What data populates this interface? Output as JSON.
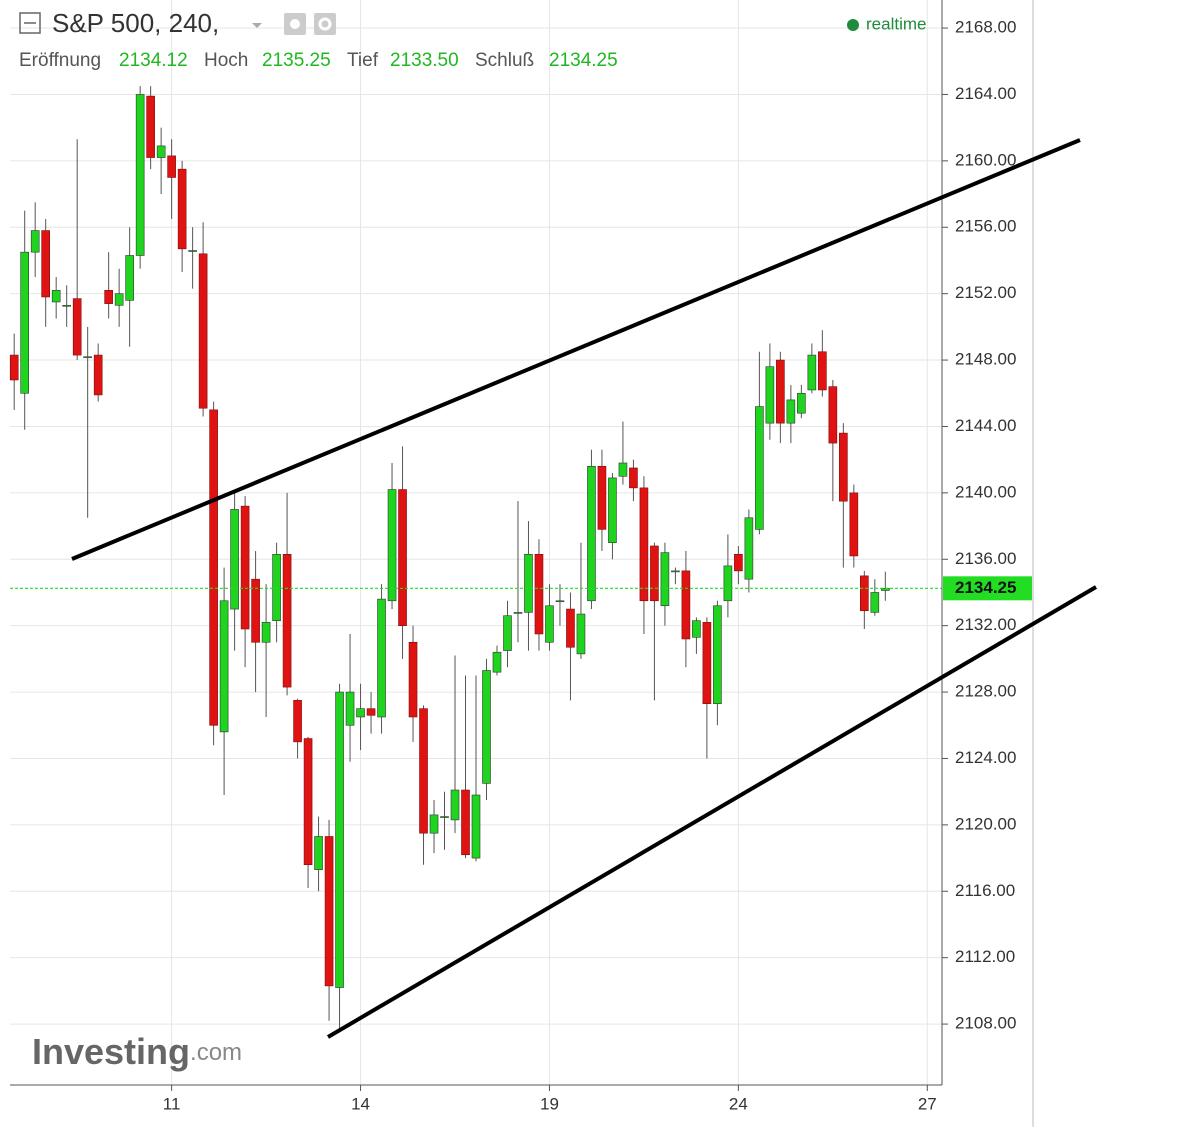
{
  "header": {
    "symbol": "S&P 500, 240,",
    "status": "realtime",
    "ohlc": [
      {
        "label": "Eröffnung",
        "value": "2134.12"
      },
      {
        "label": "Hoch",
        "value": "2135.25"
      },
      {
        "label": "Tief",
        "value": "2133.50"
      },
      {
        "label": "Schluß",
        "value": "2134.25"
      }
    ],
    "watermark": [
      "Investing",
      ".com"
    ]
  },
  "chart_data": {
    "type": "candlestick",
    "up_color": "#1fd41f",
    "down_color": "#e01313",
    "grid": true,
    "x": [
      0,
      1,
      2,
      3,
      4,
      5,
      6,
      7,
      8,
      9,
      10,
      11,
      12,
      13,
      14,
      15,
      16,
      17,
      18,
      19,
      20,
      21,
      22,
      23,
      24,
      25,
      26,
      27,
      28,
      29,
      30,
      31,
      32,
      33,
      34,
      35,
      36,
      37,
      38,
      39,
      40,
      41,
      42,
      43,
      44,
      45,
      46,
      47,
      48,
      49,
      50,
      51,
      52,
      53,
      54,
      55,
      56,
      57,
      58,
      59,
      60,
      61,
      62,
      63,
      64,
      65,
      66,
      67,
      68,
      69,
      70,
      71,
      72,
      73,
      74,
      75,
      76,
      77,
      78,
      79,
      80,
      81,
      82,
      83
    ],
    "open": [
      2148.3,
      2146,
      2154.5,
      2155.8,
      2151.5,
      2151.3,
      2151.7,
      2148.2,
      2148.3,
      2152.2,
      2151.3,
      2151.6,
      2154.3,
      2163.9,
      2160.2,
      2160.3,
      2159.5,
      2154.6,
      2154.4,
      2145,
      2125.6,
      2133,
      2139.2,
      2134.8,
      2131,
      2132.3,
      2136.3,
      2127.5,
      2125.2,
      2117.3,
      2119.3,
      2110.2,
      2126,
      2126.5,
      2127,
      2126.5,
      2133.5,
      2140.2,
      2131,
      2127,
      2119.5,
      2120.5,
      2120.3,
      2122.1,
      2118,
      2122.5,
      2129.2,
      2130.5,
      2132.8,
      2132.8,
      2136.3,
      2131,
      2133.5,
      2133,
      2130.3,
      2133.5,
      2141.6,
      2137,
      2141,
      2141.5,
      2140.3,
      2136.8,
      2133.2,
      2135.3,
      2135.3,
      2131.3,
      2132.2,
      2127.3,
      2133.5,
      2136.3,
      2134.8,
      2137.8,
      2144.2,
      2148,
      2144.2,
      2144.8,
      2146.2,
      2148.5,
      2146.4,
      2143.6,
      2140,
      2135,
      2132.8,
      2134.12
    ],
    "high": [
      2149.6,
      2157,
      2157.5,
      2156.5,
      2153,
      2152.5,
      2161.3,
      2150,
      2149,
      2154.5,
      2153.5,
      2156,
      2164.5,
      2164.5,
      2162,
      2161.3,
      2160,
      2156,
      2156.3,
      2145.5,
      2135.5,
      2140,
      2139.8,
      2136.5,
      2134.5,
      2137,
      2140,
      2127.6,
      2125.3,
      2120.5,
      2120.3,
      2128.5,
      2131.5,
      2128.5,
      2128,
      2134.5,
      2141.8,
      2142.8,
      2132,
      2127.2,
      2121.5,
      2122,
      2130.2,
      2129,
      2129,
      2130,
      2130.8,
      2133.5,
      2139.5,
      2138.3,
      2137.2,
      2134.5,
      2134.5,
      2134,
      2137,
      2142.6,
      2142.6,
      2141.2,
      2144.3,
      2142,
      2141,
      2137,
      2137,
      2135.5,
      2136.5,
      2132.5,
      2132.5,
      2133.5,
      2137.5,
      2136.8,
      2139,
      2148.5,
      2149,
      2148.5,
      2146.5,
      2146.5,
      2149,
      2149.8,
      2146.8,
      2144.2,
      2140.5,
      2135.3,
      2134.8,
      2135.25
    ],
    "low": [
      2145,
      2143.8,
      2153,
      2150,
      2150.5,
      2150,
      2148,
      2138.5,
      2145.5,
      2150.5,
      2150,
      2148.8,
      2153.5,
      2159.5,
      2158,
      2156.5,
      2153.3,
      2152.3,
      2144.6,
      2124.8,
      2121.8,
      2130.5,
      2129.5,
      2128,
      2126.5,
      2131,
      2127.8,
      2124,
      2116.2,
      2116,
      2108.2,
      2107.6,
      2123.8,
      2124.5,
      2125.5,
      2125.5,
      2133,
      2130,
      2125,
      2117.6,
      2118.3,
      2118.5,
      2119.5,
      2118,
      2117.8,
      2121.5,
      2129,
      2129.5,
      2131,
      2130.5,
      2130.5,
      2130.5,
      2132,
      2127.5,
      2130,
      2133,
      2136.5,
      2136,
      2140.5,
      2139.5,
      2131.5,
      2127.5,
      2132,
      2134.5,
      2129.5,
      2130.3,
      2124,
      2126,
      2132.5,
      2134.5,
      2134,
      2137.5,
      2143.2,
      2143,
      2143,
      2144.5,
      2146,
      2145.8,
      2139.5,
      2135.5,
      2135.5,
      2131.8,
      2132.6,
      2133.5
    ],
    "close": [
      2146.8,
      2154.5,
      2155.8,
      2151.8,
      2152.2,
      2151.3,
      2148.3,
      2148.2,
      2145.9,
      2151.4,
      2152,
      2154.3,
      2164,
      2160.2,
      2160.9,
      2159,
      2154.7,
      2154.6,
      2145.1,
      2126,
      2133.5,
      2139,
      2131.8,
      2131,
      2132.2,
      2136.3,
      2128.3,
      2125,
      2117.6,
      2119.3,
      2110.3,
      2128,
      2128,
      2127,
      2126.6,
      2133.6,
      2140.2,
      2132,
      2126.5,
      2119.5,
      2120.6,
      2120.5,
      2122.1,
      2118.2,
      2121.8,
      2129.3,
      2130.4,
      2132.6,
      2132.8,
      2136.3,
      2131.5,
      2133.2,
      2133.5,
      2130.7,
      2132.7,
      2141.6,
      2137.8,
      2140.9,
      2141.8,
      2140.3,
      2133.5,
      2133.5,
      2136.4,
      2135.3,
      2131.2,
      2132.3,
      2127.3,
      2133.2,
      2135.6,
      2135.3,
      2138.5,
      2145.2,
      2147.6,
      2144.2,
      2145.6,
      2146,
      2148.3,
      2146.2,
      2143,
      2139.5,
      2136.2,
      2132.9,
      2134,
      2134.25
    ],
    "last_price": 2134.25,
    "last_price_color": "#22dd22",
    "xlim": [
      -0.4,
      88.4
    ],
    "xticks": [
      {
        "value": 15,
        "label": "11"
      },
      {
        "value": 33,
        "label": "14"
      },
      {
        "value": 51,
        "label": "19"
      },
      {
        "value": 69,
        "label": "24"
      },
      {
        "value": 87,
        "label": "27"
      }
    ],
    "ylim": [
      2104.33,
      2169.69
    ],
    "yticks": [
      {
        "value": 2108,
        "label": "2108.00"
      },
      {
        "value": 2112,
        "label": "2112.00"
      },
      {
        "value": 2116,
        "label": "2116.00"
      },
      {
        "value": 2120,
        "label": "2120.00"
      },
      {
        "value": 2124,
        "label": "2124.00"
      },
      {
        "value": 2128,
        "label": "2128.00"
      },
      {
        "value": 2132,
        "label": "2132.00"
      },
      {
        "value": 2136,
        "label": "2136.00"
      },
      {
        "value": 2140,
        "label": "2140.00"
      },
      {
        "value": 2144,
        "label": "2144.00"
      },
      {
        "value": 2148,
        "label": "2148.00"
      },
      {
        "value": 2152,
        "label": "2152.00"
      },
      {
        "value": 2156,
        "label": "2156.00"
      },
      {
        "value": 2160,
        "label": "2160.00"
      },
      {
        "value": 2164,
        "label": "2164.00"
      },
      {
        "value": 2168,
        "label": "2168.00"
      }
    ]
  }
}
